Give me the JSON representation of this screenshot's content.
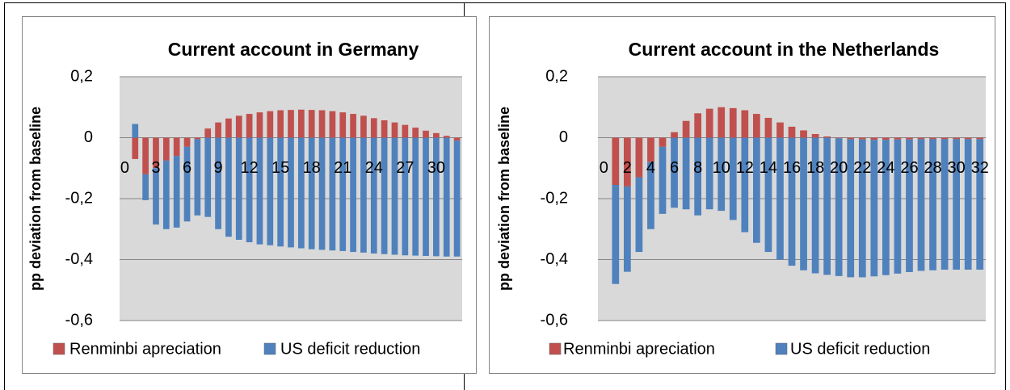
{
  "chart_data": [
    {
      "type": "bar",
      "stacked": true,
      "title": "Current account in Germany",
      "y_label": "pp  deviation from baseline",
      "categories": [
        "0",
        null,
        null,
        "3",
        null,
        null,
        "6",
        null,
        null,
        "9",
        null,
        null,
        "12",
        null,
        null,
        "15",
        null,
        null,
        "18",
        null,
        null,
        "21",
        null,
        null,
        "24",
        null,
        null,
        "27",
        null,
        null,
        "30",
        null,
        null
      ],
      "series": [
        {
          "name": "Renminbi apreciation",
          "color": "#c0504d",
          "values": [
            null,
            -0.07,
            -0.12,
            -0.1,
            -0.075,
            -0.06,
            -0.03,
            -0.005,
            0.03,
            0.05,
            0.063,
            0.072,
            0.078,
            0.083,
            0.087,
            0.09,
            0.091,
            0.092,
            0.091,
            0.09,
            0.087,
            0.083,
            0.078,
            0.072,
            0.064,
            0.057,
            0.05,
            0.042,
            0.033,
            0.023,
            0.015,
            0.006,
            -0.01
          ]
        },
        {
          "name": "US deficit reduction",
          "color": "#4f81bd",
          "values": [
            null,
            0.045,
            -0.085,
            -0.185,
            -0.225,
            -0.235,
            -0.245,
            -0.25,
            -0.26,
            -0.3,
            -0.325,
            -0.335,
            -0.343,
            -0.35,
            -0.353,
            -0.357,
            -0.36,
            -0.363,
            -0.366,
            -0.368,
            -0.37,
            -0.372,
            -0.375,
            -0.377,
            -0.38,
            -0.382,
            -0.384,
            -0.386,
            -0.387,
            -0.388,
            -0.389,
            -0.39,
            -0.38
          ]
        }
      ],
      "ylim": [
        -0.6,
        0.2
      ],
      "yticks": [
        {
          "value": -0.6,
          "label": "-0,6"
        },
        {
          "value": -0.4,
          "label": "-0,4"
        },
        {
          "value": -0.2,
          "label": "-0,2"
        },
        0,
        {
          "value": 0.2,
          "label": "0,2"
        }
      ],
      "grid": true,
      "legend": "bottom"
    },
    {
      "type": "bar",
      "stacked": true,
      "title": "Current account in the Netherlands",
      "y_label": "pp  deviation from baseline",
      "categories": [
        "0",
        null,
        "2",
        null,
        "4",
        null,
        "6",
        null,
        "8",
        null,
        "10",
        null,
        "12",
        null,
        "14",
        null,
        "16",
        null,
        "18",
        null,
        "20",
        null,
        "22",
        null,
        "24",
        null,
        "26",
        null,
        "28",
        null,
        "30",
        null,
        "32"
      ],
      "series": [
        {
          "name": "Renminbi apreciation",
          "color": "#c0504d",
          "values": [
            null,
            -0.155,
            -0.16,
            -0.13,
            -0.08,
            -0.03,
            0.018,
            0.055,
            0.08,
            0.095,
            0.1,
            0.097,
            0.09,
            0.078,
            0.065,
            0.05,
            0.036,
            0.024,
            0.012,
            0.004,
            -0.002,
            -0.005,
            -0.006,
            -0.007,
            -0.007,
            -0.006,
            -0.006,
            -0.005,
            -0.005,
            -0.005,
            -0.005,
            -0.005,
            -0.005
          ]
        },
        {
          "name": "US deficit reduction",
          "color": "#4f81bd",
          "values": [
            null,
            -0.325,
            -0.28,
            -0.245,
            -0.22,
            -0.22,
            -0.23,
            -0.235,
            -0.255,
            -0.235,
            -0.24,
            -0.27,
            -0.31,
            -0.345,
            -0.375,
            -0.4,
            -0.42,
            -0.435,
            -0.445,
            -0.45,
            -0.452,
            -0.453,
            -0.452,
            -0.448,
            -0.444,
            -0.44,
            -0.435,
            -0.432,
            -0.43,
            -0.428,
            -0.428,
            -0.428,
            -0.428
          ]
        }
      ],
      "ylim": [
        -0.6,
        0.2
      ],
      "yticks": [
        {
          "value": -0.6,
          "label": "-0,6"
        },
        {
          "value": -0.4,
          "label": "-0,4"
        },
        {
          "value": -0.2,
          "label": "-0,2"
        },
        0,
        {
          "value": 0.2,
          "label": "0,2"
        }
      ],
      "grid": true,
      "legend": "bottom"
    }
  ]
}
